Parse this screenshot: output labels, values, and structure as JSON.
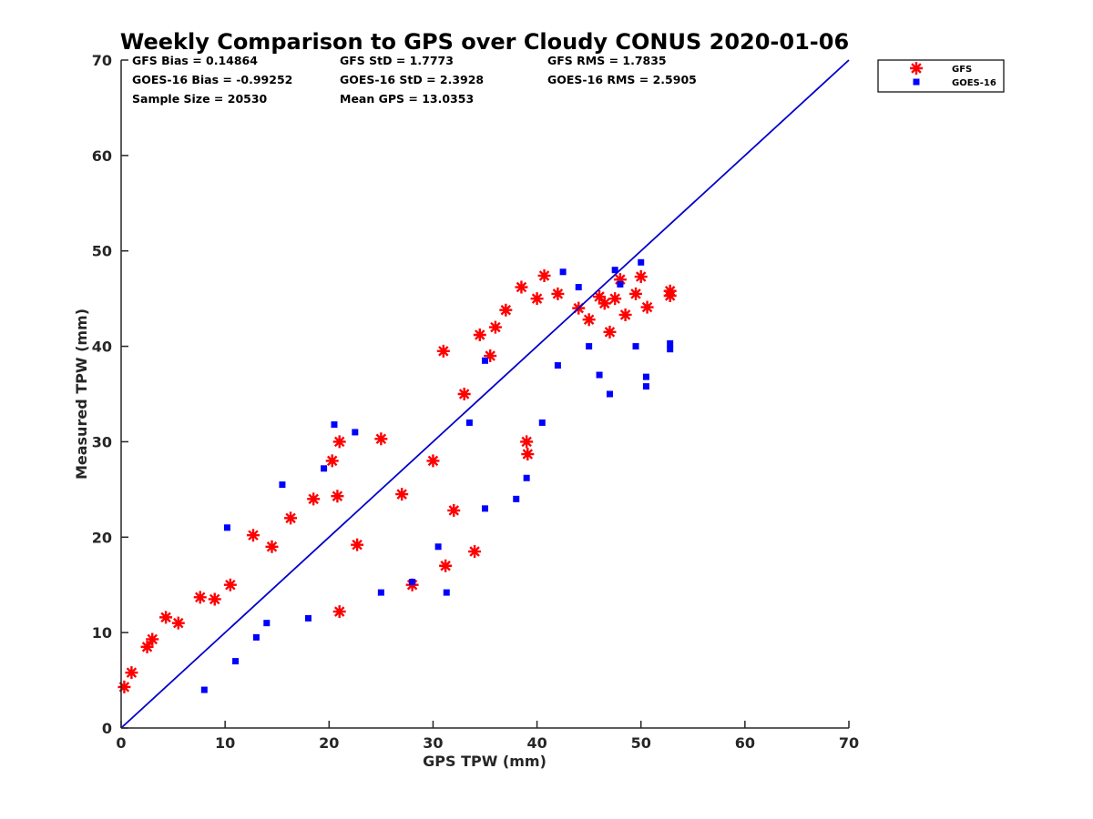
{
  "chart_data": {
    "type": "scatter",
    "title": "Weekly Comparison to GPS over Cloudy CONUS 2020-01-06",
    "xlabel": "GPS TPW (mm)",
    "ylabel": "Measured TPW (mm)",
    "xlim": [
      0,
      70
    ],
    "ylim": [
      0,
      70
    ],
    "x_ticks": [
      "0",
      "10",
      "20",
      "30",
      "40",
      "50",
      "60",
      "70"
    ],
    "y_ticks": [
      "0",
      "10",
      "20",
      "30",
      "40",
      "50",
      "60",
      "70"
    ],
    "grid": false,
    "legend_position": "outside top-right",
    "stats": [
      "GFS Bias = 0.14864",
      "GFS StD = 1.7773",
      "GFS RMS = 1.7835",
      "GOES-16 Bias = -0.99252",
      "GOES-16 StD = 2.3928",
      "GOES-16 RMS = 2.5905",
      "Sample Size = 20530",
      "Mean GPS = 13.0353"
    ],
    "reference_line": {
      "x": [
        0,
        70
      ],
      "y": [
        0,
        70
      ],
      "color": "#0000cc"
    },
    "series": [
      {
        "name": "GFS",
        "marker": "asterisk",
        "color": "#ff0000",
        "points": [
          [
            4.3,
            11.6
          ],
          [
            7.6,
            13.7
          ],
          [
            10.5,
            15.0
          ],
          [
            12.7,
            20.2
          ],
          [
            16.3,
            22.0
          ],
          [
            18.5,
            24.0
          ],
          [
            20.3,
            28.0
          ],
          [
            20.8,
            24.3
          ],
          [
            21.0,
            30.0
          ],
          [
            21.0,
            12.2
          ],
          [
            22.7,
            19.2
          ],
          [
            25.0,
            30.3
          ],
          [
            27.0,
            24.5
          ],
          [
            28.0,
            15.0
          ],
          [
            31.0,
            39.5
          ],
          [
            31.2,
            17.0
          ],
          [
            32.0,
            22.8
          ],
          [
            33.0,
            35.0
          ],
          [
            34.0,
            18.5
          ],
          [
            34.5,
            41.2
          ],
          [
            35.5,
            39.0
          ],
          [
            36.0,
            42.0
          ],
          [
            37.0,
            43.8
          ],
          [
            38.5,
            46.2
          ],
          [
            39.0,
            30.0
          ],
          [
            39.1,
            28.7
          ],
          [
            40.0,
            45.0
          ],
          [
            40.7,
            47.4
          ],
          [
            42.0,
            45.5
          ],
          [
            44.0,
            44.0
          ],
          [
            45.0,
            42.8
          ],
          [
            46.0,
            45.2
          ],
          [
            46.5,
            44.5
          ],
          [
            47.0,
            41.5
          ],
          [
            47.5,
            45.0
          ],
          [
            48.0,
            47.0
          ],
          [
            48.5,
            43.3
          ],
          [
            49.5,
            45.5
          ],
          [
            50.0,
            47.3
          ],
          [
            50.6,
            44.1
          ],
          [
            52.8,
            45.3
          ],
          [
            52.8,
            45.8
          ],
          [
            0.3,
            4.3
          ],
          [
            1.0,
            5.8
          ],
          [
            2.5,
            8.5
          ],
          [
            3.0,
            9.3
          ],
          [
            5.5,
            11.0
          ],
          [
            9.0,
            13.5
          ],
          [
            14.5,
            19.0
          ],
          [
            30.0,
            28.0
          ]
        ]
      },
      {
        "name": "GOES-16",
        "marker": "square",
        "color": "#0000ff",
        "points": [
          [
            10.2,
            21.0
          ],
          [
            15.5,
            25.5
          ],
          [
            19.5,
            27.2
          ],
          [
            20.5,
            31.8
          ],
          [
            22.5,
            31.0
          ],
          [
            25.0,
            14.2
          ],
          [
            28.0,
            15.3
          ],
          [
            31.3,
            14.2
          ],
          [
            33.5,
            32.0
          ],
          [
            35.0,
            38.5
          ],
          [
            38.0,
            24.0
          ],
          [
            39.0,
            26.2
          ],
          [
            40.5,
            32.0
          ],
          [
            42.0,
            38.0
          ],
          [
            42.5,
            47.8
          ],
          [
            44.0,
            46.2
          ],
          [
            45.0,
            40.0
          ],
          [
            46.0,
            37.0
          ],
          [
            47.0,
            35.0
          ],
          [
            47.5,
            48.0
          ],
          [
            48.0,
            46.5
          ],
          [
            49.5,
            40.0
          ],
          [
            50.0,
            48.8
          ],
          [
            50.5,
            36.8
          ],
          [
            50.5,
            35.8
          ],
          [
            52.8,
            40.3
          ],
          [
            52.8,
            39.7
          ],
          [
            13.0,
            9.5
          ],
          [
            11.0,
            7.0
          ],
          [
            18.0,
            11.5
          ],
          [
            35.0,
            23.0
          ],
          [
            30.5,
            19.0
          ],
          [
            8.0,
            4.0
          ],
          [
            14.0,
            11.0
          ]
        ]
      }
    ]
  }
}
